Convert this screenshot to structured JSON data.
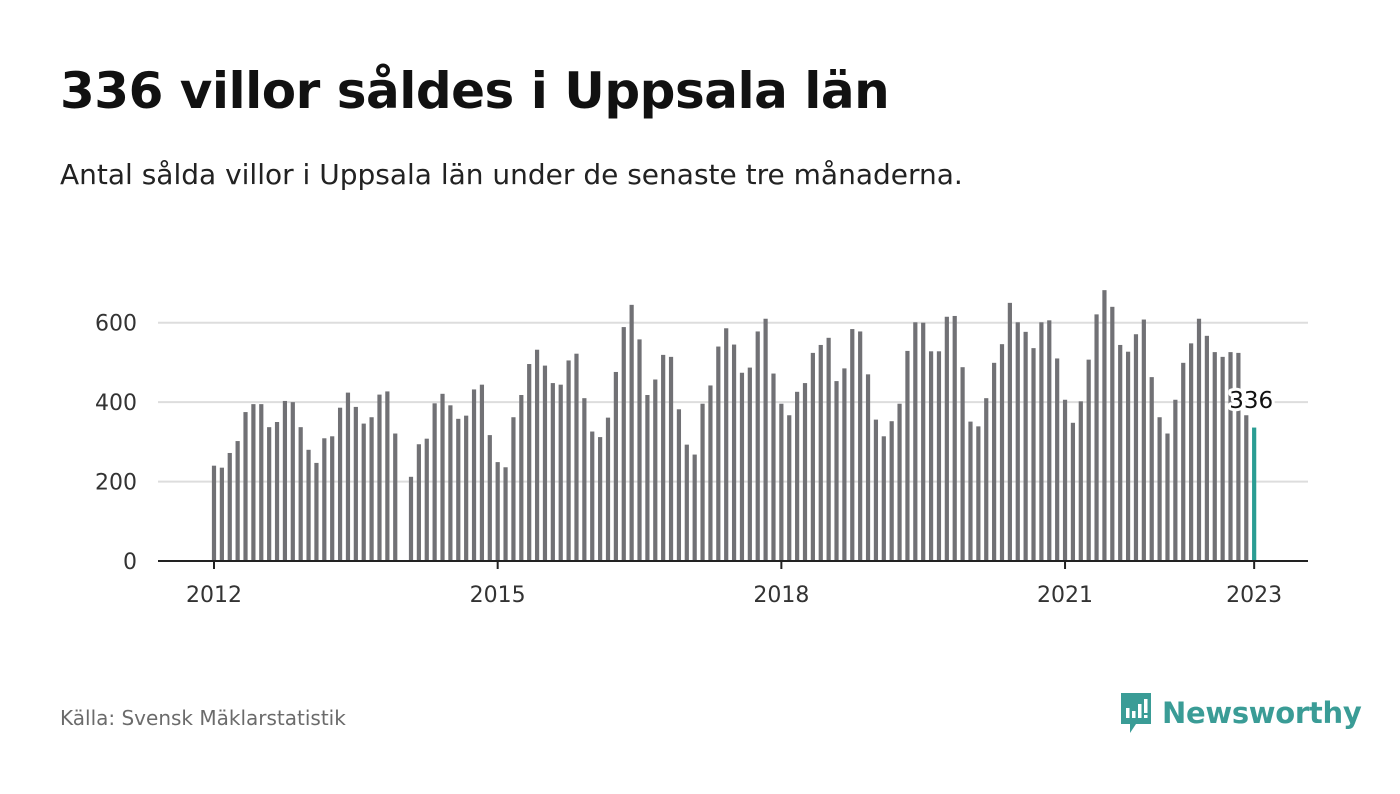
{
  "header": {
    "title": "336 villor såldes i Uppsala län",
    "subtitle": "Antal sålda villor i Uppsala län under de senaste tre månaderna."
  },
  "footer": {
    "source": "Källa: Svensk Mäklarstatistik",
    "brand": "Newsworthy"
  },
  "colors": {
    "bar": "#717175",
    "highlight": "#2a9d93",
    "grid": "#dddddd",
    "axis": "#222222",
    "brand": "#3a9c96"
  },
  "chart_data": {
    "type": "bar",
    "x_start": "2012-01",
    "ylim": [
      0,
      700
    ],
    "y_ticks": [
      0,
      200,
      400,
      600
    ],
    "x_ticks": [
      "2012",
      "2015",
      "2018",
      "2021",
      "2023"
    ],
    "values": [
      240,
      235,
      272,
      302,
      375,
      395,
      395,
      337,
      350,
      403,
      400,
      337,
      280,
      247,
      309,
      314,
      386,
      424,
      388,
      346,
      362,
      419,
      427,
      321,
      null,
      212,
      294,
      308,
      397,
      421,
      392,
      358,
      366,
      432,
      444,
      317,
      249,
      236,
      362,
      418,
      496,
      532,
      492,
      448,
      444,
      505,
      522,
      410,
      326,
      312,
      361,
      476,
      589,
      645,
      558,
      418,
      457,
      519,
      514,
      382,
      293,
      268,
      396,
      442,
      540,
      586,
      545,
      474,
      487,
      578,
      610,
      472,
      396,
      367,
      426,
      448,
      524,
      544,
      562,
      453,
      485,
      584,
      578,
      470,
      356,
      314,
      352,
      396,
      529,
      601,
      600,
      528,
      528,
      615,
      617,
      488,
      351,
      339,
      410,
      499,
      546,
      650,
      601,
      577,
      536,
      601,
      606,
      510,
      406,
      348,
      402,
      507,
      621,
      682,
      640,
      544,
      527,
      571,
      608,
      463,
      362,
      321,
      406,
      499,
      548,
      610,
      567,
      526,
      514,
      526,
      524,
      367,
      336
    ],
    "highlight_label": "336"
  }
}
